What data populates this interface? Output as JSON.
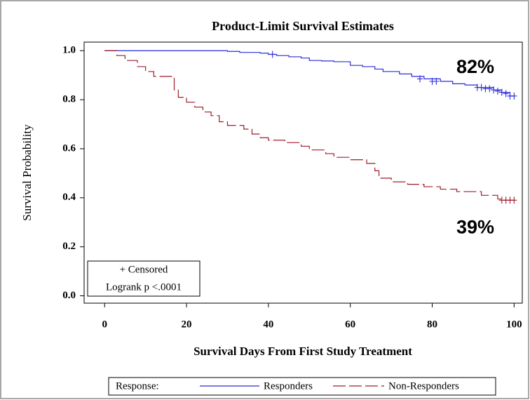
{
  "chart_data": {
    "type": "survival",
    "title": "Product-Limit Survival Estimates",
    "x_label": "Survival Days From First Study Treatment",
    "y_label": "Survival Probability",
    "xlim": [
      -5,
      102
    ],
    "ylim": [
      -0.03,
      1.035
    ],
    "xticks": [
      0,
      20,
      40,
      60,
      80,
      100
    ],
    "yticks": [
      {
        "value": 0,
        "label": "0.0"
      },
      0.2,
      0.4,
      0.6,
      0.8,
      {
        "value": 1,
        "label": "1.0"
      }
    ],
    "legend_title": "Response:",
    "inset": [
      "+ Censored",
      "Logrank p <.0001"
    ],
    "series": [
      {
        "name": "Responders",
        "color": "#2b2bd9",
        "dash": false,
        "x": [
          0,
          30,
          33,
          38,
          40,
          42,
          45,
          48,
          50,
          53,
          56,
          60,
          63,
          66,
          68,
          72,
          75,
          78,
          82,
          85,
          88,
          91,
          95,
          97,
          99,
          100
        ],
        "values": [
          1,
          0.997,
          0.993,
          0.99,
          0.985,
          0.98,
          0.975,
          0.97,
          0.96,
          0.958,
          0.955,
          0.94,
          0.935,
          0.925,
          0.915,
          0.905,
          0.895,
          0.885,
          0.875,
          0.865,
          0.86,
          0.85,
          0.84,
          0.83,
          0.815,
          0.815
        ],
        "censored": {
          "x": [
            41,
            77,
            80,
            81,
            91,
            92,
            93,
            94,
            95,
            96,
            97,
            98,
            99,
            100
          ],
          "values": [
            0.985,
            0.885,
            0.875,
            0.875,
            0.85,
            0.85,
            0.845,
            0.845,
            0.84,
            0.835,
            0.83,
            0.825,
            0.815,
            0.815
          ]
        },
        "annotation": "82%",
        "annotation_color": "#1a2a78"
      },
      {
        "name": "Non-Responders",
        "color": "#a01c2c",
        "dash": true,
        "x": [
          0,
          3,
          5,
          8,
          10,
          12,
          17,
          18,
          20,
          22,
          24,
          26,
          28,
          30,
          34,
          36,
          38,
          40,
          44,
          48,
          50,
          54,
          56,
          60,
          64,
          66,
          67,
          70,
          74,
          78,
          82,
          86,
          92,
          96,
          97,
          100
        ],
        "values": [
          1,
          0.98,
          0.96,
          0.935,
          0.915,
          0.895,
          0.84,
          0.81,
          0.79,
          0.77,
          0.75,
          0.735,
          0.71,
          0.695,
          0.68,
          0.66,
          0.645,
          0.635,
          0.625,
          0.61,
          0.595,
          0.58,
          0.565,
          0.555,
          0.54,
          0.51,
          0.48,
          0.465,
          0.455,
          0.445,
          0.435,
          0.425,
          0.41,
          0.395,
          0.39,
          0.39
        ],
        "censored": {
          "x": [
            97,
            98,
            99,
            100
          ],
          "values": [
            0.39,
            0.39,
            0.39,
            0.39
          ]
        },
        "annotation": "39%",
        "annotation_color": "#e00000"
      }
    ]
  }
}
